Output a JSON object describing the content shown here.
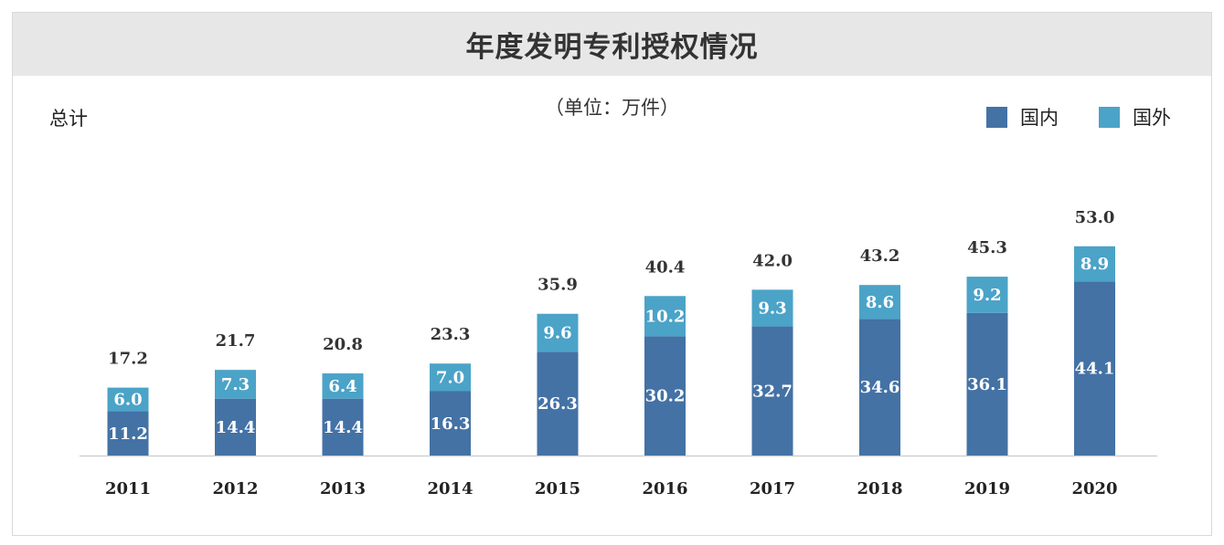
{
  "chart_data": {
    "type": "bar",
    "stacked": true,
    "title": "年度发明专利授权情况",
    "subtitle": "（单位：万件）",
    "ylabel": "总计",
    "categories": [
      "2011",
      "2012",
      "2013",
      "2014",
      "2015",
      "2016",
      "2017",
      "2018",
      "2019",
      "2020"
    ],
    "series": [
      {
        "name": "国内",
        "color": "#4472a5",
        "values": [
          11.2,
          14.4,
          14.4,
          16.3,
          26.3,
          30.2,
          32.7,
          34.6,
          36.1,
          44.1
        ]
      },
      {
        "name": "国外",
        "color": "#4ba3c8",
        "values": [
          6.0,
          7.3,
          6.4,
          7.0,
          9.6,
          10.2,
          9.3,
          8.6,
          9.2,
          8.9
        ]
      }
    ],
    "totals": [
      17.2,
      21.7,
      20.8,
      23.3,
      35.9,
      40.4,
      42.0,
      43.2,
      45.3,
      53.0
    ],
    "ylim": [
      0,
      56
    ],
    "grid": false,
    "legend_position": "top-right"
  }
}
